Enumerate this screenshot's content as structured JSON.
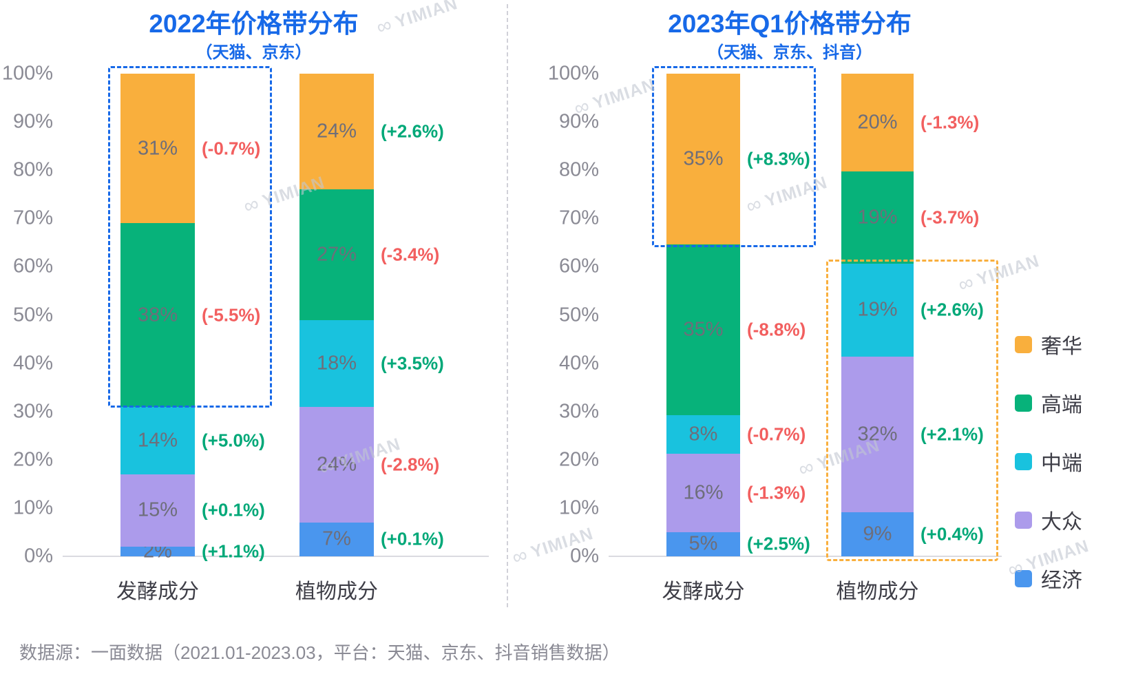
{
  "footer": {
    "source": "数据源：一面数据（2021.01-2023.03，平台：天猫、京东、抖音销售数据）"
  },
  "watermark": {
    "label": "YIMIAN"
  },
  "colors": {
    "title_blue": "#1769E8",
    "highlight_blue": "#1769E8",
    "highlight_orange": "#F9AF3D",
    "delta_positive": "#00A878",
    "delta_negative": "#F25F5F",
    "luxury_orange": "#F9AF3D",
    "premium_green": "#07B27A",
    "mid_cyan": "#19C2DE",
    "mass_purple": "#AC9BEB",
    "economy_blue": "#4A96EE"
  },
  "legend": {
    "items": [
      {
        "label": "奢华",
        "color": "#F9AF3D"
      },
      {
        "label": "高端",
        "color": "#07B27A"
      },
      {
        "label": "中端",
        "color": "#19C2DE"
      },
      {
        "label": "大众",
        "color": "#AC9BEB"
      },
      {
        "label": "经济",
        "color": "#4A96EE"
      }
    ]
  },
  "chart_data": [
    {
      "type": "bar",
      "stacked": true,
      "title": "2022年价格带分布",
      "subtitle": "（天猫、京东）",
      "categories": [
        "发酵成分",
        "植物成分"
      ],
      "xlabel": "",
      "ylabel": "",
      "ylim": [
        0,
        100
      ],
      "unit": "%",
      "yticks": [
        "0%",
        "10%",
        "20%",
        "30%",
        "40%",
        "50%",
        "60%",
        "70%",
        "80%",
        "90%",
        "100%"
      ],
      "legend_position": "right",
      "series": [
        {
          "name": "经济",
          "color": "#4A96EE",
          "values": [
            2,
            7
          ],
          "deltas": [
            "(+1.1%)",
            "(+0.1%)"
          ]
        },
        {
          "name": "大众",
          "color": "#AC9BEB",
          "values": [
            15,
            24
          ],
          "deltas": [
            "(+0.1%)",
            "(-2.8%)"
          ]
        },
        {
          "name": "中端",
          "color": "#19C2DE",
          "values": [
            14,
            18
          ],
          "deltas": [
            "(+5.0%)",
            "(+3.5%)"
          ]
        },
        {
          "name": "高端",
          "color": "#07B27A",
          "values": [
            38,
            27
          ],
          "deltas": [
            "(-5.5%)",
            "(-3.4%)"
          ]
        },
        {
          "name": "奢华",
          "color": "#F9AF3D",
          "values": [
            31,
            24
          ],
          "deltas": [
            "(-0.7%)",
            "(+2.6%)"
          ]
        }
      ]
    },
    {
      "type": "bar",
      "stacked": true,
      "title": "2023年Q1价格带分布",
      "subtitle": "（天猫、京东、抖音）",
      "categories": [
        "发酵成分",
        "植物成分"
      ],
      "xlabel": "",
      "ylabel": "",
      "ylim": [
        0,
        100
      ],
      "unit": "%",
      "yticks": [
        "0%",
        "10%",
        "20%",
        "30%",
        "40%",
        "50%",
        "60%",
        "70%",
        "80%",
        "90%",
        "100%"
      ],
      "legend_position": "right",
      "series": [
        {
          "name": "经济",
          "color": "#4A96EE",
          "values": [
            5,
            9
          ],
          "deltas": [
            "(+2.5%)",
            "(+0.4%)"
          ]
        },
        {
          "name": "大众",
          "color": "#AC9BEB",
          "values": [
            16,
            32
          ],
          "deltas": [
            "(-1.3%)",
            "(+2.1%)"
          ]
        },
        {
          "name": "中端",
          "color": "#19C2DE",
          "values": [
            8,
            19
          ],
          "deltas": [
            "(-0.7%)",
            "(+2.6%)"
          ]
        },
        {
          "name": "高端",
          "color": "#07B27A",
          "values": [
            35,
            19
          ],
          "deltas": [
            "(-8.8%)",
            "(-3.7%)"
          ]
        },
        {
          "name": "奢华",
          "color": "#F9AF3D",
          "values": [
            35,
            20
          ],
          "deltas": [
            "(+8.3%)",
            "(-1.3%)"
          ]
        }
      ]
    }
  ]
}
